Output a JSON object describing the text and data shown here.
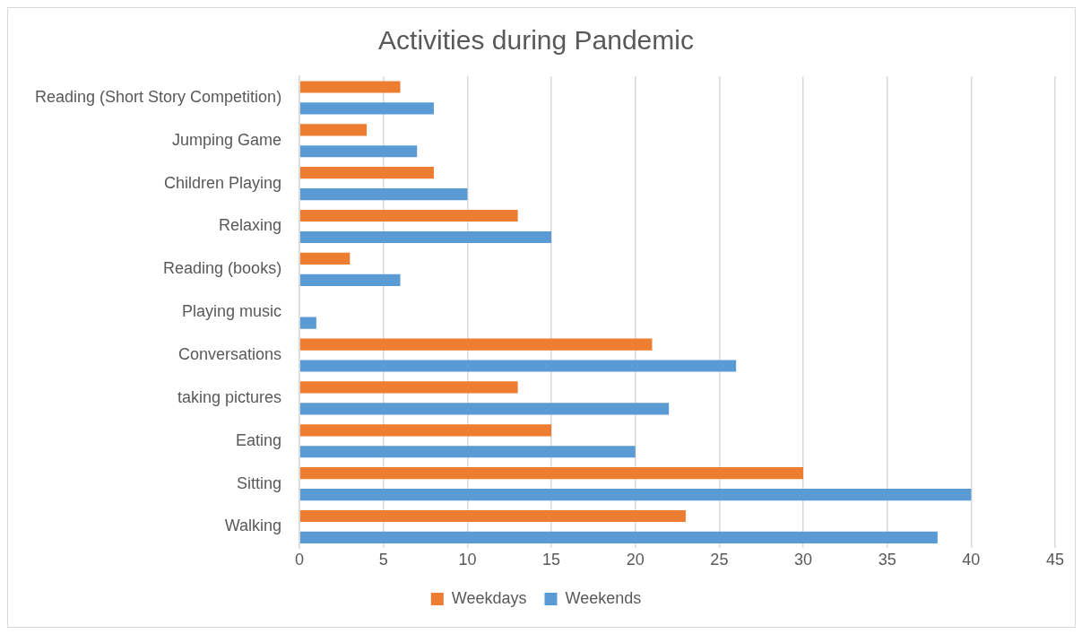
{
  "chart_data": {
    "type": "bar",
    "orientation": "horizontal",
    "title": "Activities during Pandemic",
    "categories": [
      "Reading (Short Story Competition)",
      "Jumping Game",
      "Children Playing",
      "Relaxing",
      "Reading (books)",
      "Playing music",
      "Conversations",
      "taking pictures",
      "Eating",
      "Sitting",
      "Walking"
    ],
    "series": [
      {
        "name": "Weekdays",
        "color": "#ed7d31",
        "values": [
          6,
          4,
          8,
          13,
          3,
          0,
          21,
          13,
          15,
          30,
          23
        ]
      },
      {
        "name": "Weekends",
        "color": "#5b9bd5",
        "values": [
          8,
          7,
          10,
          15,
          6,
          1,
          26,
          22,
          20,
          40,
          38
        ]
      }
    ],
    "xlim": [
      0,
      45
    ],
    "xticks": [
      0,
      5,
      10,
      15,
      20,
      25,
      30,
      35,
      40,
      45
    ],
    "grid": "x",
    "legend": "bottom"
  }
}
